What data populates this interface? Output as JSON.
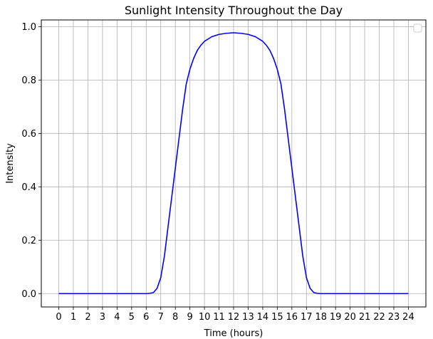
{
  "chart_data": {
    "type": "line",
    "title": "Sunlight Intensity Throughout the Day",
    "xlabel": "Time (hours)",
    "ylabel": "Intensity",
    "xlim": [
      -1.2,
      25.2
    ],
    "ylim": [
      -0.05,
      1.025
    ],
    "xticks": [
      0,
      1,
      2,
      3,
      4,
      5,
      6,
      7,
      8,
      9,
      10,
      11,
      12,
      13,
      14,
      15,
      16,
      17,
      18,
      19,
      20,
      21,
      22,
      23,
      24
    ],
    "xtick_labels": [
      "0",
      "1",
      "2",
      "3",
      "4",
      "5",
      "6",
      "7",
      "8",
      "9",
      "10",
      "11",
      "12",
      "13",
      "14",
      "15",
      "16",
      "17",
      "18",
      "19",
      "20",
      "21",
      "22",
      "23",
      "24"
    ],
    "yticks": [
      0,
      0.2,
      0.4,
      0.6,
      0.8,
      1.0
    ],
    "ytick_labels": [
      "0.0",
      "0.2",
      "0.4",
      "0.6",
      "0.8",
      "1.0"
    ],
    "grid": true,
    "legend": "top-right (empty)",
    "colors": {
      "line": "#0000ff",
      "grid": "#b0b0b0"
    },
    "series": [
      {
        "color": "#0000ff",
        "x": [
          0,
          1,
          2,
          3,
          4,
          5,
          6,
          6.25,
          6.5,
          6.75,
          7,
          7.25,
          7.5,
          7.75,
          8,
          8.25,
          8.5,
          8.75,
          9,
          9.25,
          9.5,
          9.75,
          10,
          10.5,
          11,
          11.5,
          12,
          12.5,
          13,
          13.5,
          14,
          14.25,
          14.5,
          14.75,
          15,
          15.25,
          15.5,
          15.75,
          16,
          16.25,
          16.5,
          16.75,
          17,
          17.25,
          17.5,
          17.75,
          18,
          19,
          20,
          21,
          22,
          23,
          24
        ],
        "y": [
          0,
          0,
          0,
          0,
          0,
          0,
          0,
          0.001,
          0.004,
          0.02,
          0.06,
          0.14,
          0.25,
          0.36,
          0.47,
          0.58,
          0.69,
          0.785,
          0.84,
          0.88,
          0.91,
          0.93,
          0.945,
          0.962,
          0.971,
          0.975,
          0.977,
          0.975,
          0.971,
          0.962,
          0.945,
          0.93,
          0.91,
          0.88,
          0.84,
          0.785,
          0.69,
          0.58,
          0.47,
          0.36,
          0.25,
          0.14,
          0.06,
          0.02,
          0.004,
          0.001,
          0,
          0,
          0,
          0,
          0,
          0,
          0
        ]
      }
    ]
  }
}
